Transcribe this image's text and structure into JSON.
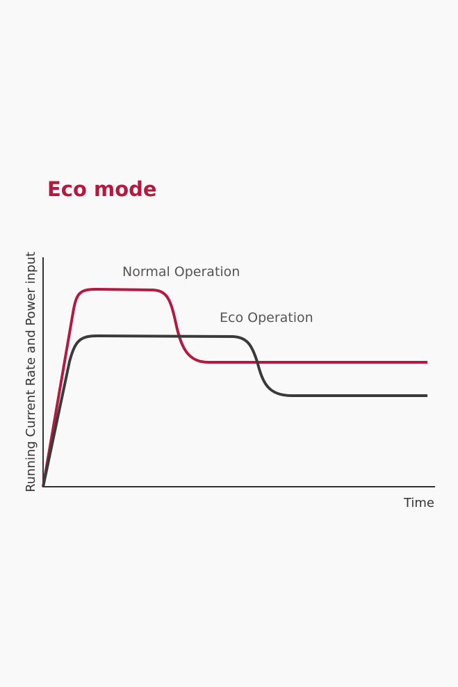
{
  "title": "Eco mode",
  "y_axis_label": "Running Current Rate and Power input",
  "x_axis_label": "Time",
  "curves": [
    {
      "label": "Normal Operation"
    },
    {
      "label": "Eco Operation"
    }
  ]
}
